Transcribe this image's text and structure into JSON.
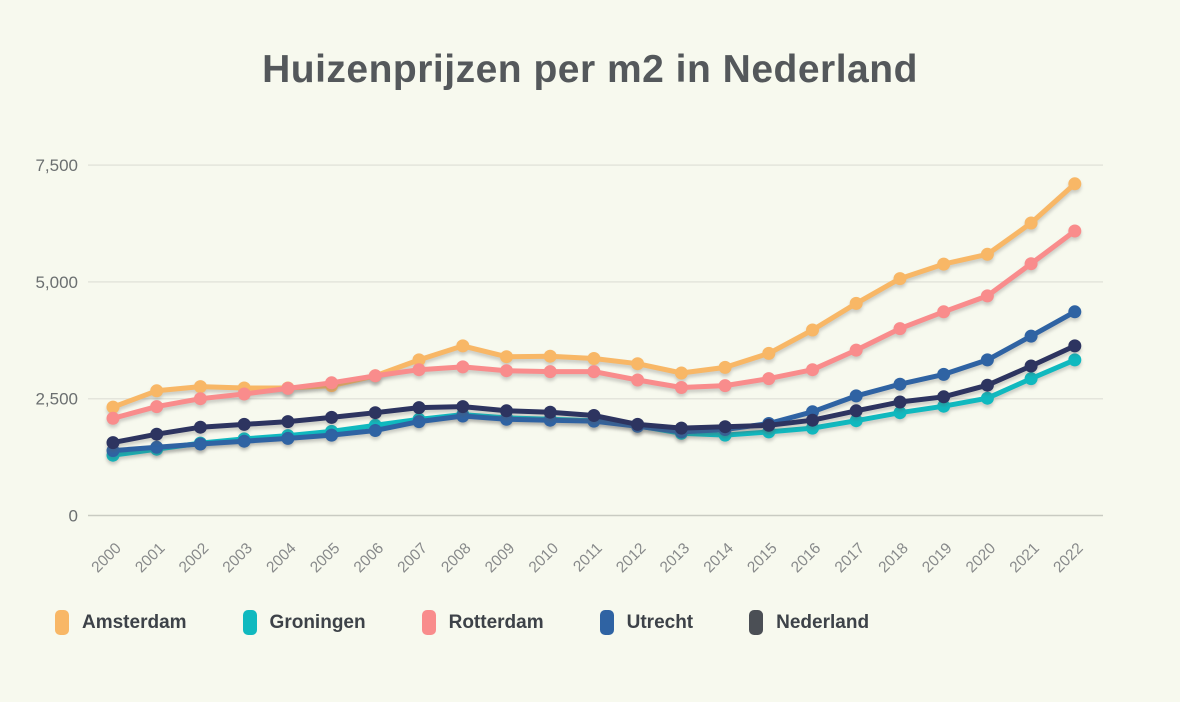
{
  "title": "Huizenprijzen per m2 in Nederland",
  "colors": {
    "background": "#F7F9EE",
    "gridline": "#E4E5DC",
    "zero_axis_line": "#C9CBC2",
    "y_tick_label": "#6B6F70",
    "x_tick_label": "#87898A",
    "title_text": "#54585B",
    "legend_text": "#3D4248"
  },
  "chart_data": {
    "type": "line",
    "title": "Huizenprijzen per m2 in Nederland",
    "xlabel": "",
    "ylabel": "",
    "x": [
      "2000",
      "2001",
      "2002",
      "2003",
      "2004",
      "2005",
      "2006",
      "2007",
      "2008",
      "2009",
      "2010",
      "2011",
      "2012",
      "2013",
      "2014",
      "2015",
      "2016",
      "2017",
      "2018",
      "2019",
      "2020",
      "2021",
      "2022"
    ],
    "y_ticks": [
      0,
      2500,
      5000,
      7500
    ],
    "y_tick_labels": [
      "0",
      "2,500",
      "5,000",
      "7,500"
    ],
    "ylim": [
      0,
      8000
    ],
    "grid": true,
    "legend_position": "bottom",
    "marker": "circle",
    "series": [
      {
        "name": "Amsterdam",
        "color": "#F8B766",
        "values": [
          2320,
          2670,
          2760,
          2730,
          2730,
          2780,
          2990,
          3330,
          3630,
          3400,
          3410,
          3360,
          3250,
          3050,
          3170,
          3470,
          3970,
          4540,
          5070,
          5380,
          5590,
          6260,
          7100
        ]
      },
      {
        "name": "Groningen",
        "color": "#10B9BF",
        "values": [
          1290,
          1420,
          1550,
          1640,
          1710,
          1800,
          1930,
          2060,
          2160,
          2090,
          2060,
          2030,
          1920,
          1760,
          1720,
          1790,
          1870,
          2030,
          2200,
          2340,
          2510,
          2930,
          3330
        ]
      },
      {
        "name": "Rotterdam",
        "color": "#F98C8C",
        "values": [
          2080,
          2330,
          2500,
          2600,
          2720,
          2840,
          2990,
          3120,
          3180,
          3100,
          3080,
          3080,
          2900,
          2740,
          2780,
          2930,
          3120,
          3540,
          4000,
          4360,
          4700,
          5390,
          6090
        ]
      },
      {
        "name": "Utrecht",
        "color": "#2F63A3",
        "values": [
          1390,
          1460,
          1530,
          1590,
          1650,
          1720,
          1820,
          2010,
          2130,
          2060,
          2040,
          2020,
          1910,
          1790,
          1840,
          1970,
          2220,
          2560,
          2810,
          3020,
          3330,
          3840,
          4360
        ]
      },
      {
        "name": "Nederland",
        "color": "#2D3460",
        "swatch_color": "#4B4F55",
        "values": [
          1560,
          1740,
          1890,
          1950,
          2010,
          2100,
          2200,
          2310,
          2330,
          2240,
          2210,
          2140,
          1950,
          1870,
          1900,
          1930,
          2040,
          2240,
          2430,
          2540,
          2790,
          3200,
          3630
        ]
      }
    ]
  }
}
